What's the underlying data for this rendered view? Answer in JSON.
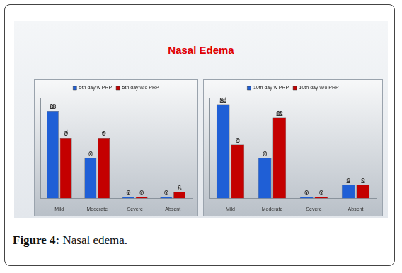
{
  "title": "Nasal Edema",
  "caption_label": "Figure 4:",
  "caption": "Nasal edema.",
  "chart_data": [
    {
      "type": "bar",
      "categories": [
        "Mild",
        "Moderate",
        "Severe",
        "Absent"
      ],
      "series": [
        {
          "name": "5th day w PRP",
          "color": "#1f5fd6",
          "values": [
            13,
            6,
            0,
            0
          ]
        },
        {
          "name": "5th day w/o PRP",
          "color": "#c40000",
          "values": [
            9,
            9,
            0,
            1
          ]
        }
      ],
      "ylim": [
        0,
        15
      ],
      "grid": false,
      "legend": "top",
      "data_labels": true,
      "tick_labels": "x"
    },
    {
      "type": "bar",
      "categories": [
        "Mild",
        "Moderate",
        "Severe",
        "Absent"
      ],
      "series": [
        {
          "name": "10th day w PRP",
          "color": "#1f5fd6",
          "values": [
            14,
            6,
            0,
            2
          ]
        },
        {
          "name": "10th day w/o PRP",
          "color": "#c40000",
          "values": [
            8,
            12,
            0,
            2
          ]
        }
      ],
      "ylim": [
        0,
        15
      ],
      "grid": false,
      "legend": "top",
      "data_labels": true,
      "tick_labels": "x"
    }
  ]
}
